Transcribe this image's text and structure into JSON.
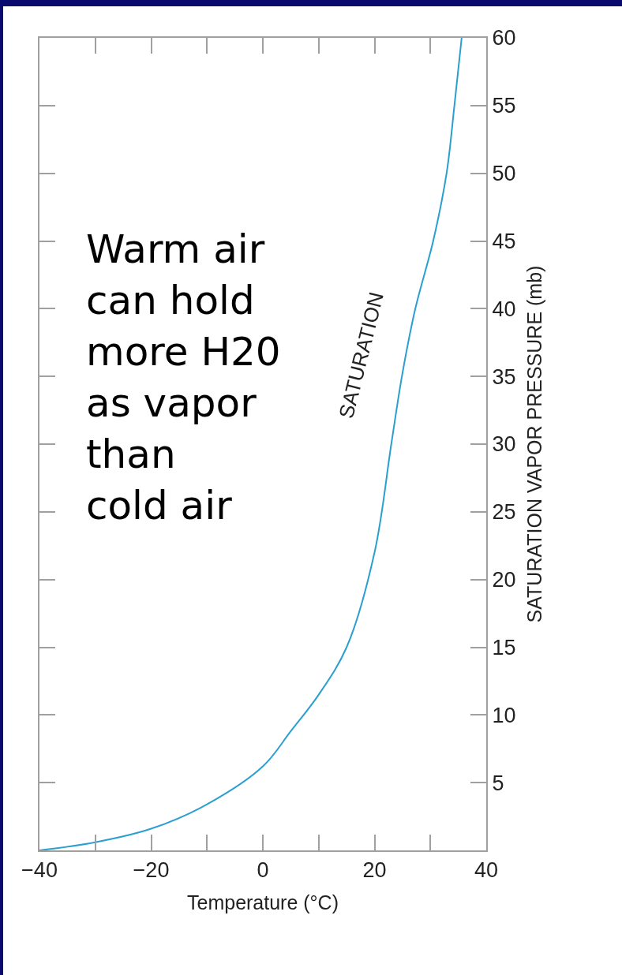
{
  "chart_data": {
    "type": "line",
    "xlabel": "Temperature (°C)",
    "ylabel": "SATURATION VAPOR PRESSURE (mb)",
    "x": [
      -40,
      -30,
      -20,
      -10,
      0,
      5,
      10,
      15,
      20,
      23,
      24.9,
      27.3,
      30.5,
      32.9,
      34.3,
      35.6
    ],
    "series": [
      {
        "color": "#2a9fd0",
        "values": [
          0,
          0.6,
          1.6,
          3.4,
          6.2,
          8.8,
          11.5,
          15,
          22,
          30,
          35,
          40,
          45,
          50,
          55,
          60
        ]
      }
    ],
    "xlim": [
      -40,
      40
    ],
    "ylim": [
      0,
      60
    ],
    "xticks": [
      {
        "value": -40,
        "label": "−40"
      },
      {
        "value": -20,
        "label": "−20"
      },
      0,
      20,
      40
    ],
    "yticks": [
      5,
      10,
      15,
      20,
      25,
      30,
      35,
      40,
      45,
      50,
      55,
      60
    ],
    "annotations": [
      "Warm air\ncan hold\nmore H20\nas vapor\nthan\ncold air",
      "SATURATION"
    ],
    "grid": false,
    "marker": "none",
    "line_style": "solid"
  }
}
